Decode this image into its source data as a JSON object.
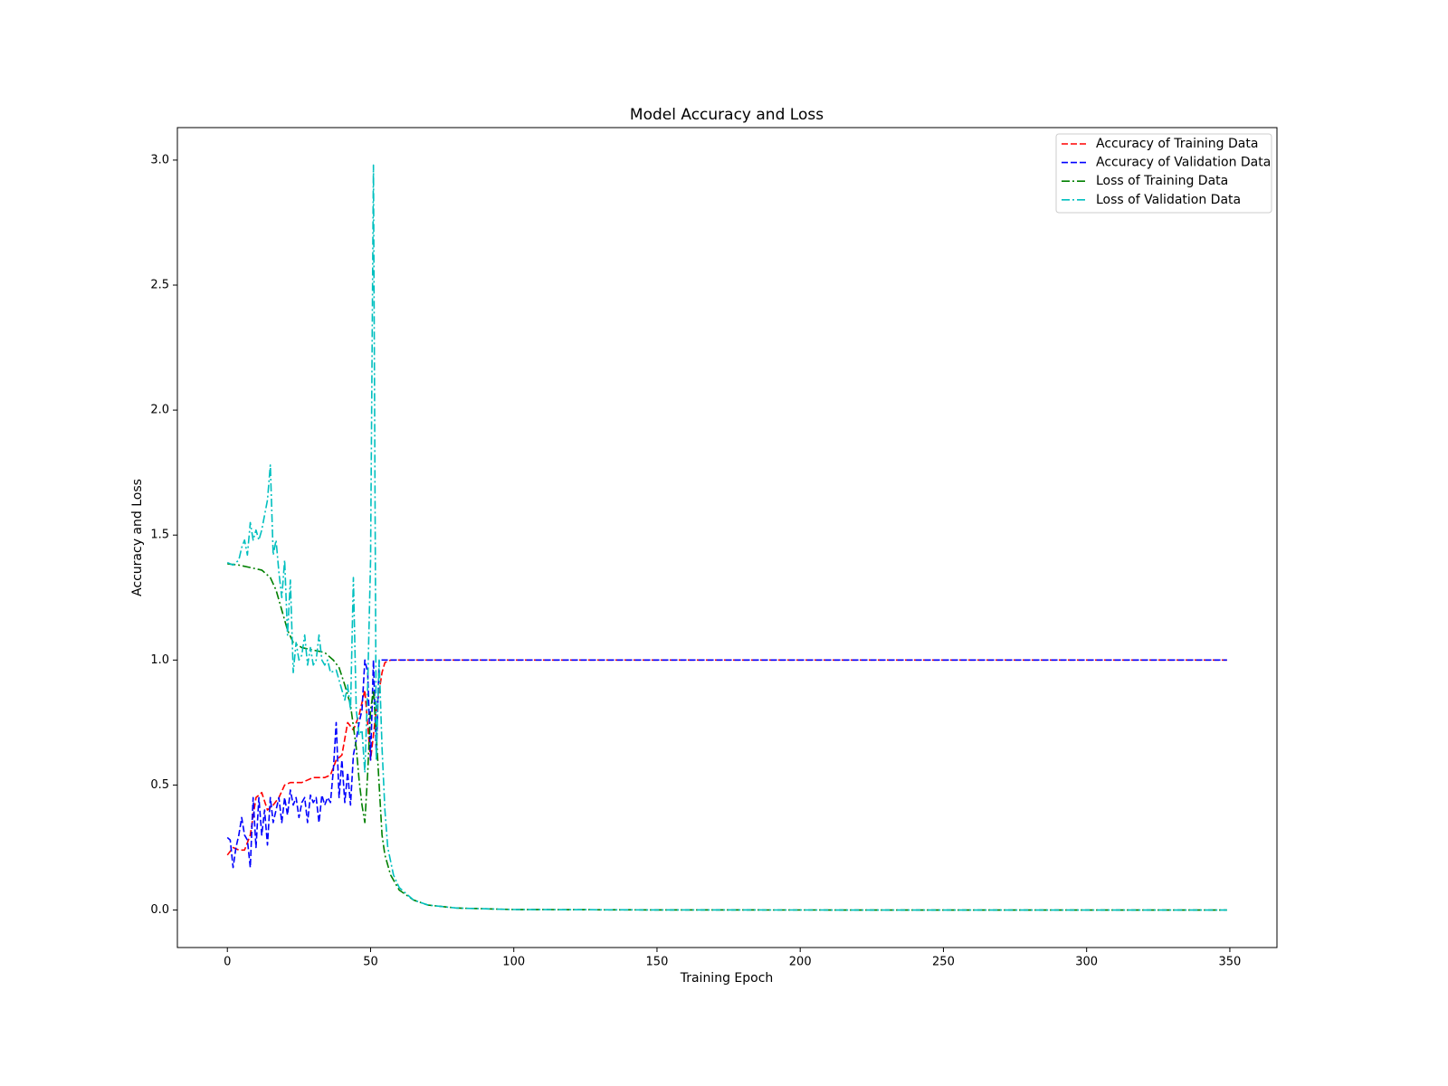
{
  "chart_data": {
    "type": "line",
    "title": "Model Accuracy and Loss",
    "xlabel": "Training Epoch",
    "ylabel": "Accuracy and Loss",
    "xlim": [
      -17.45,
      366.45
    ],
    "ylim": [
      -0.15,
      3.13
    ],
    "xticks": [
      0,
      50,
      100,
      150,
      200,
      250,
      300,
      350
    ],
    "yticks": [
      0.0,
      0.5,
      1.0,
      1.5,
      2.0,
      2.5,
      3.0
    ],
    "xtick_labels": [
      "0",
      "50",
      "100",
      "150",
      "200",
      "250",
      "300",
      "350"
    ],
    "ytick_labels": [
      "0.0",
      "0.5",
      "1.0",
      "1.5",
      "2.0",
      "2.5",
      "3.0"
    ],
    "grid": false,
    "legend_position": "top-right",
    "series": [
      {
        "name": "Accuracy of Training Data",
        "color": "#ff0000",
        "style": "dashed",
        "points": [
          [
            0,
            0.22
          ],
          [
            2,
            0.25
          ],
          [
            4,
            0.24
          ],
          [
            6,
            0.24
          ],
          [
            8,
            0.3
          ],
          [
            10,
            0.45
          ],
          [
            12,
            0.47
          ],
          [
            14,
            0.4
          ],
          [
            16,
            0.42
          ],
          [
            18,
            0.45
          ],
          [
            20,
            0.5
          ],
          [
            22,
            0.51
          ],
          [
            24,
            0.51
          ],
          [
            26,
            0.51
          ],
          [
            28,
            0.52
          ],
          [
            30,
            0.53
          ],
          [
            32,
            0.53
          ],
          [
            34,
            0.53
          ],
          [
            36,
            0.54
          ],
          [
            38,
            0.6
          ],
          [
            40,
            0.62
          ],
          [
            42,
            0.75
          ],
          [
            44,
            0.72
          ],
          [
            46,
            0.78
          ],
          [
            48,
            0.88
          ],
          [
            50,
            0.6
          ],
          [
            52,
            0.8
          ],
          [
            54,
            0.95
          ],
          [
            55,
            0.99
          ],
          [
            57,
            1.0
          ],
          [
            100,
            1.0
          ],
          [
            200,
            1.0
          ],
          [
            300,
            1.0
          ],
          [
            349,
            1.0
          ]
        ]
      },
      {
        "name": "Accuracy of Validation Data",
        "color": "#0000ff",
        "style": "dashed",
        "points": [
          [
            0,
            0.29
          ],
          [
            1,
            0.28
          ],
          [
            2,
            0.17
          ],
          [
            3,
            0.25
          ],
          [
            4,
            0.3
          ],
          [
            5,
            0.37
          ],
          [
            6,
            0.3
          ],
          [
            7,
            0.28
          ],
          [
            8,
            0.17
          ],
          [
            9,
            0.45
          ],
          [
            10,
            0.25
          ],
          [
            11,
            0.45
          ],
          [
            12,
            0.3
          ],
          [
            13,
            0.4
          ],
          [
            14,
            0.26
          ],
          [
            15,
            0.45
          ],
          [
            16,
            0.35
          ],
          [
            17,
            0.4
          ],
          [
            18,
            0.45
          ],
          [
            19,
            0.35
          ],
          [
            20,
            0.45
          ],
          [
            21,
            0.38
          ],
          [
            22,
            0.48
          ],
          [
            23,
            0.42
          ],
          [
            24,
            0.45
          ],
          [
            25,
            0.37
          ],
          [
            26,
            0.43
          ],
          [
            27,
            0.45
          ],
          [
            28,
            0.35
          ],
          [
            29,
            0.46
          ],
          [
            30,
            0.43
          ],
          [
            31,
            0.45
          ],
          [
            32,
            0.35
          ],
          [
            33,
            0.46
          ],
          [
            34,
            0.42
          ],
          [
            35,
            0.45
          ],
          [
            36,
            0.43
          ],
          [
            37,
            0.56
          ],
          [
            38,
            0.75
          ],
          [
            39,
            0.45
          ],
          [
            40,
            0.6
          ],
          [
            41,
            0.43
          ],
          [
            42,
            0.55
          ],
          [
            43,
            0.42
          ],
          [
            44,
            0.62
          ],
          [
            45,
            0.68
          ],
          [
            46,
            0.75
          ],
          [
            47,
            0.8
          ],
          [
            48,
            1.0
          ],
          [
            49,
            0.95
          ],
          [
            50,
            0.6
          ],
          [
            51,
            1.0
          ],
          [
            52,
            0.62
          ],
          [
            53,
            1.0
          ],
          [
            54,
            1.0
          ],
          [
            56,
            1.0
          ],
          [
            100,
            1.0
          ],
          [
            200,
            1.0
          ],
          [
            300,
            1.0
          ],
          [
            349,
            1.0
          ]
        ]
      },
      {
        "name": "Loss of Training Data",
        "color": "#008000",
        "style": "dashdot",
        "points": [
          [
            0,
            1.385
          ],
          [
            4,
            1.38
          ],
          [
            8,
            1.37
          ],
          [
            12,
            1.36
          ],
          [
            15,
            1.33
          ],
          [
            17,
            1.28
          ],
          [
            19,
            1.2
          ],
          [
            21,
            1.12
          ],
          [
            23,
            1.07
          ],
          [
            26,
            1.05
          ],
          [
            30,
            1.04
          ],
          [
            34,
            1.03
          ],
          [
            37,
            1.0
          ],
          [
            39,
            0.97
          ],
          [
            41,
            0.9
          ],
          [
            43,
            0.82
          ],
          [
            45,
            0.65
          ],
          [
            46,
            0.52
          ],
          [
            47,
            0.42
          ],
          [
            48,
            0.35
          ],
          [
            49,
            0.55
          ],
          [
            50,
            0.8
          ],
          [
            51,
            0.88
          ],
          [
            52,
            0.7
          ],
          [
            53,
            0.5
          ],
          [
            54,
            0.3
          ],
          [
            55,
            0.22
          ],
          [
            57,
            0.14
          ],
          [
            60,
            0.08
          ],
          [
            65,
            0.04
          ],
          [
            70,
            0.02
          ],
          [
            80,
            0.008
          ],
          [
            100,
            0.002
          ],
          [
            150,
            0.0005
          ],
          [
            200,
            0.0002
          ],
          [
            300,
            0.0001
          ],
          [
            349,
            0.0001
          ]
        ]
      },
      {
        "name": "Loss of Validation Data",
        "color": "#00bfbf",
        "style": "dashdot",
        "points": [
          [
            0,
            1.39
          ],
          [
            2,
            1.38
          ],
          [
            4,
            1.4
          ],
          [
            5,
            1.45
          ],
          [
            6,
            1.48
          ],
          [
            7,
            1.42
          ],
          [
            8,
            1.55
          ],
          [
            9,
            1.48
          ],
          [
            10,
            1.52
          ],
          [
            11,
            1.48
          ],
          [
            12,
            1.52
          ],
          [
            13,
            1.58
          ],
          [
            14,
            1.64
          ],
          [
            15,
            1.78
          ],
          [
            16,
            1.42
          ],
          [
            17,
            1.48
          ],
          [
            18,
            1.35
          ],
          [
            19,
            1.25
          ],
          [
            20,
            1.4
          ],
          [
            21,
            1.1
          ],
          [
            22,
            1.32
          ],
          [
            23,
            0.95
          ],
          [
            24,
            1.07
          ],
          [
            25,
            1.0
          ],
          [
            26,
            1.02
          ],
          [
            27,
            1.1
          ],
          [
            28,
            0.98
          ],
          [
            29,
            1.05
          ],
          [
            30,
            0.98
          ],
          [
            31,
            1.0
          ],
          [
            32,
            1.1
          ],
          [
            33,
            1.0
          ],
          [
            34,
            0.98
          ],
          [
            35,
            1.0
          ],
          [
            36,
            0.95
          ],
          [
            38,
            0.96
          ],
          [
            40,
            0.88
          ],
          [
            41,
            0.84
          ],
          [
            42,
            0.9
          ],
          [
            43,
            0.8
          ],
          [
            44,
            1.33
          ],
          [
            45,
            0.8
          ],
          [
            46,
            0.7
          ],
          [
            47,
            0.72
          ],
          [
            48,
            0.55
          ],
          [
            49,
            0.9
          ],
          [
            50,
            1.4
          ],
          [
            51,
            2.98
          ],
          [
            52,
            0.6
          ],
          [
            53,
            1.0
          ],
          [
            54,
            0.65
          ],
          [
            55,
            0.4
          ],
          [
            56,
            0.25
          ],
          [
            58,
            0.14
          ],
          [
            60,
            0.09
          ],
          [
            65,
            0.04
          ],
          [
            70,
            0.02
          ],
          [
            80,
            0.008
          ],
          [
            100,
            0.002
          ],
          [
            150,
            0.0005
          ],
          [
            200,
            0.0002
          ],
          [
            300,
            0.0001
          ],
          [
            349,
            0.0001
          ]
        ]
      }
    ]
  }
}
